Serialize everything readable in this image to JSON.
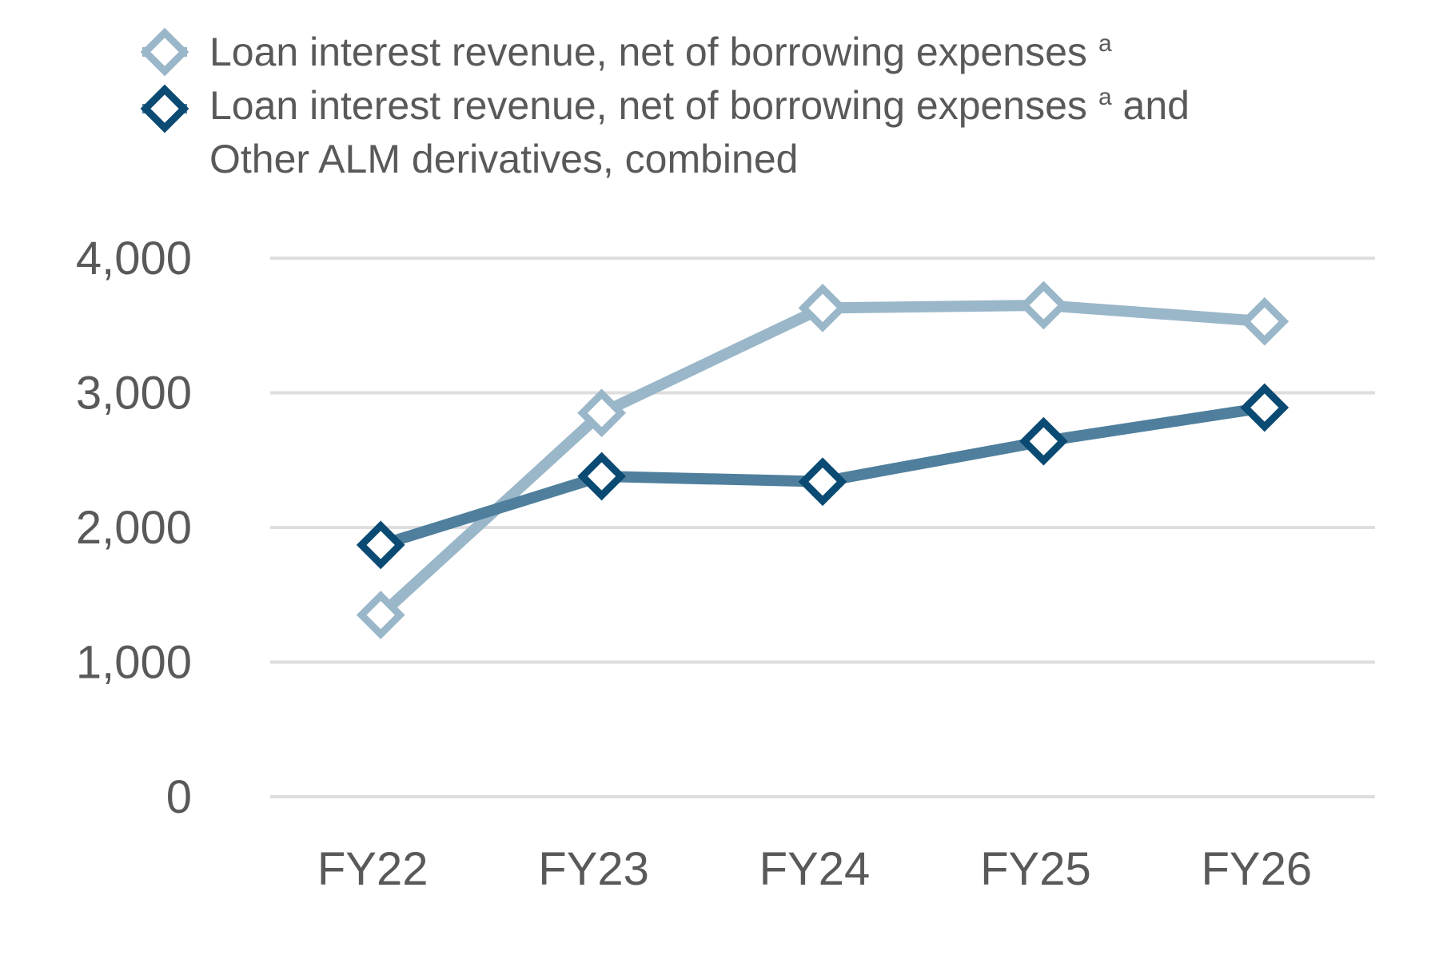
{
  "chart_data": {
    "type": "line",
    "categories": [
      "FY22",
      "FY23",
      "FY24",
      "FY25",
      "FY26"
    ],
    "series": [
      {
        "name": "Loan interest revenue, net of borrowing expenses",
        "name_sup": "a",
        "color": "#9ab7c9",
        "marker": "diamond-open",
        "values": [
          1350,
          2850,
          3630,
          3650,
          3530
        ]
      },
      {
        "name": "Loan interest revenue, net of borrowing expenses",
        "name_sup": "a",
        "name_suffix": " and",
        "name_line2": "Other ALM derivatives, combined",
        "color": "#4f7f9c",
        "marker_color": "#0a4a73",
        "marker": "diamond-open",
        "values": [
          1870,
          2380,
          2340,
          2640,
          2890
        ]
      }
    ],
    "yticks": [
      "0",
      "1,000",
      "2,000",
      "3,000",
      "4,000"
    ],
    "ytick_values": [
      0,
      1000,
      2000,
      3000,
      4000
    ],
    "ylim": [
      0,
      4000
    ],
    "grid": true,
    "legend": "top-left",
    "title": "",
    "xlabel": "",
    "ylabel": ""
  }
}
